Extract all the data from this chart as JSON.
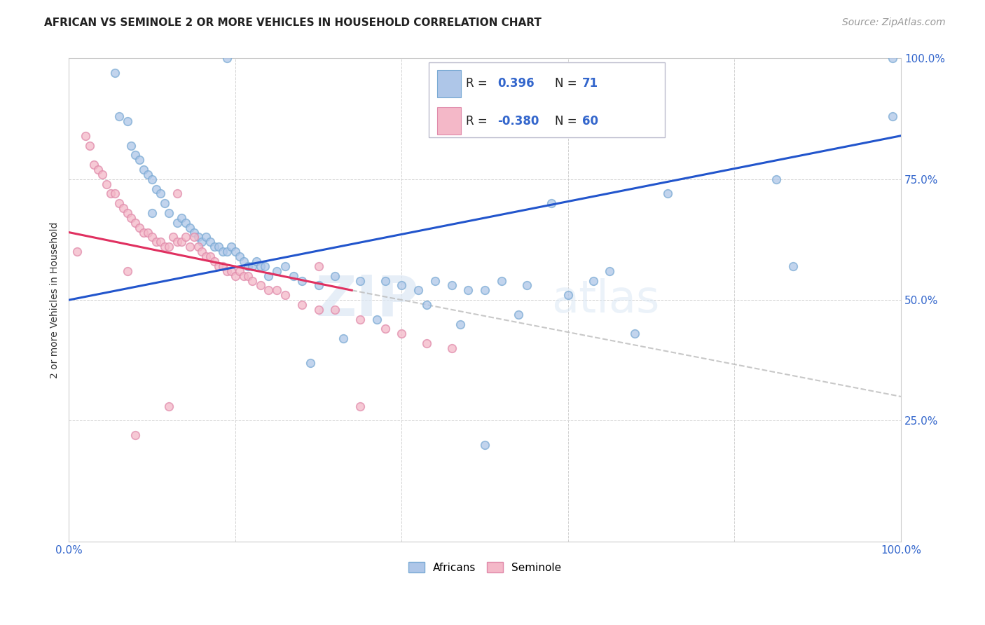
{
  "title": "AFRICAN VS SEMINOLE 2 OR MORE VEHICLES IN HOUSEHOLD CORRELATION CHART",
  "source": "Source: ZipAtlas.com",
  "ylabel": "2 or more Vehicles in Household",
  "xlim": [
    0.0,
    1.0
  ],
  "ylim": [
    0.0,
    1.0
  ],
  "ytick_labels": [
    "",
    "25.0%",
    "50.0%",
    "75.0%",
    "100.0%"
  ],
  "ytick_positions": [
    0.0,
    0.25,
    0.5,
    0.75,
    1.0
  ],
  "xtick_labels": [
    "0.0%",
    "",
    "",
    "",
    "",
    "100.0%"
  ],
  "xtick_positions": [
    0.0,
    0.2,
    0.4,
    0.6,
    0.8,
    1.0
  ],
  "watermark_zip": "ZIP",
  "watermark_atlas": "atlas",
  "african_color": "#aec6e8",
  "african_edge": "#7aaad4",
  "seminole_color": "#f4b8c8",
  "seminole_edge": "#e08aaa",
  "trend_african_color": "#2255cc",
  "trend_seminole_color": "#e03060",
  "trend_extension_color": "#bbbbbb",
  "african_scatter_x": [
    0.19,
    0.055,
    0.06,
    0.07,
    0.075,
    0.08,
    0.085,
    0.09,
    0.095,
    0.1,
    0.1,
    0.105,
    0.11,
    0.115,
    0.12,
    0.13,
    0.135,
    0.14,
    0.145,
    0.15,
    0.155,
    0.16,
    0.165,
    0.17,
    0.175,
    0.18,
    0.185,
    0.19,
    0.195,
    0.2,
    0.205,
    0.21,
    0.215,
    0.22,
    0.225,
    0.23,
    0.235,
    0.24,
    0.25,
    0.26,
    0.27,
    0.28,
    0.3,
    0.32,
    0.35,
    0.38,
    0.4,
    0.42,
    0.44,
    0.46,
    0.48,
    0.5,
    0.52,
    0.55,
    0.58,
    0.6,
    0.63,
    0.65,
    0.68,
    0.72,
    0.85,
    0.87,
    0.99,
    0.99,
    0.5,
    0.33,
    0.29,
    0.37,
    0.43,
    0.47,
    0.54
  ],
  "african_scatter_y": [
    1.0,
    0.97,
    0.88,
    0.87,
    0.82,
    0.8,
    0.79,
    0.77,
    0.76,
    0.75,
    0.68,
    0.73,
    0.72,
    0.7,
    0.68,
    0.66,
    0.67,
    0.66,
    0.65,
    0.64,
    0.63,
    0.62,
    0.63,
    0.62,
    0.61,
    0.61,
    0.6,
    0.6,
    0.61,
    0.6,
    0.59,
    0.58,
    0.57,
    0.57,
    0.58,
    0.57,
    0.57,
    0.55,
    0.56,
    0.57,
    0.55,
    0.54,
    0.53,
    0.55,
    0.54,
    0.54,
    0.53,
    0.52,
    0.54,
    0.53,
    0.52,
    0.52,
    0.54,
    0.53,
    0.7,
    0.51,
    0.54,
    0.56,
    0.43,
    0.72,
    0.75,
    0.57,
    1.0,
    0.88,
    0.2,
    0.42,
    0.37,
    0.46,
    0.49,
    0.45,
    0.47
  ],
  "seminole_scatter_x": [
    0.01,
    0.02,
    0.025,
    0.03,
    0.035,
    0.04,
    0.045,
    0.05,
    0.055,
    0.06,
    0.065,
    0.07,
    0.075,
    0.08,
    0.085,
    0.09,
    0.095,
    0.1,
    0.105,
    0.11,
    0.115,
    0.12,
    0.125,
    0.13,
    0.135,
    0.14,
    0.145,
    0.15,
    0.155,
    0.16,
    0.165,
    0.17,
    0.175,
    0.18,
    0.185,
    0.19,
    0.195,
    0.2,
    0.205,
    0.21,
    0.215,
    0.22,
    0.23,
    0.24,
    0.25,
    0.26,
    0.28,
    0.3,
    0.32,
    0.35,
    0.38,
    0.4,
    0.43,
    0.46,
    0.3,
    0.13,
    0.12,
    0.08,
    0.07,
    0.35
  ],
  "seminole_scatter_y": [
    0.6,
    0.84,
    0.82,
    0.78,
    0.77,
    0.76,
    0.74,
    0.72,
    0.72,
    0.7,
    0.69,
    0.68,
    0.67,
    0.66,
    0.65,
    0.64,
    0.64,
    0.63,
    0.62,
    0.62,
    0.61,
    0.61,
    0.63,
    0.62,
    0.62,
    0.63,
    0.61,
    0.63,
    0.61,
    0.6,
    0.59,
    0.59,
    0.58,
    0.57,
    0.57,
    0.56,
    0.56,
    0.55,
    0.56,
    0.55,
    0.55,
    0.54,
    0.53,
    0.52,
    0.52,
    0.51,
    0.49,
    0.48,
    0.48,
    0.46,
    0.44,
    0.43,
    0.41,
    0.4,
    0.57,
    0.72,
    0.28,
    0.22,
    0.56,
    0.28
  ],
  "african_trend_x": [
    0.0,
    1.0
  ],
  "african_trend_y": [
    0.5,
    0.84
  ],
  "seminole_trend_x": [
    0.0,
    0.34
  ],
  "seminole_trend_y": [
    0.64,
    0.52
  ],
  "ext_trend_x": [
    0.34,
    1.0
  ],
  "ext_trend_y": [
    0.52,
    0.3
  ],
  "tick_label_color": "#3366cc",
  "marker_size": 70,
  "title_fontsize": 11,
  "source_fontsize": 10
}
